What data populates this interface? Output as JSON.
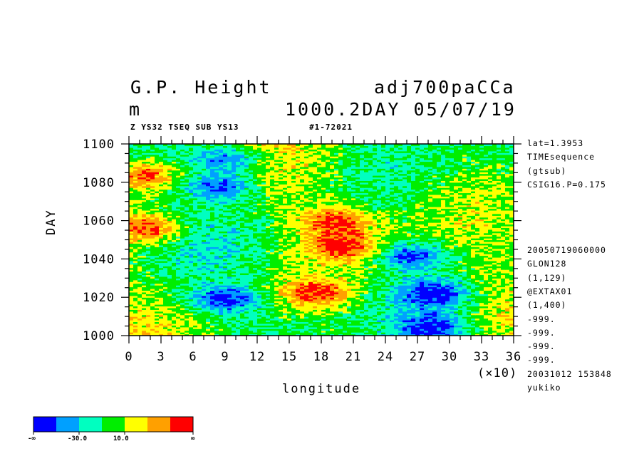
{
  "header": {
    "var_name": "G.P. Height",
    "exp_name": "adj700paCCa",
    "units": "m",
    "level_date": "1000.2DAY 05/07/19",
    "subtitle_left": "Z YS32 TSEQ SUB YS13",
    "subtitle_right": "#1-72021"
  },
  "side_info": {
    "top": [
      "lat=1.3953",
      "TIMEsequence",
      "(gtsub)",
      "CSIG16.P=0.175"
    ],
    "bottom": [
      "20050719060000",
      "GLON128",
      "(1,129)",
      "@EXTAX01",
      "(1,400)",
      "-999.",
      "-999.",
      "-999.",
      "-999.",
      "20031012 153848",
      "yukiko"
    ]
  },
  "colorbar": {
    "colors": [
      "#0000ff",
      "#00a0ff",
      "#00ffc0",
      "#00ee00",
      "#ffff00",
      "#ffa000",
      "#ff0000"
    ],
    "labels": [
      "-∞",
      "-30.0",
      "10.0",
      "∞"
    ]
  },
  "chart_data": {
    "type": "heatmap",
    "title": "G.P. Height",
    "xlabel": "longitude",
    "ylabel": "DAY",
    "x_multiplier": "(×10)",
    "xlim": [
      0,
      36
    ],
    "ylim": [
      1000,
      1100
    ],
    "x_ticks": [
      0,
      3,
      6,
      9,
      12,
      15,
      18,
      21,
      24,
      27,
      30,
      33,
      36
    ],
    "y_ticks": [
      1000,
      1020,
      1040,
      1060,
      1080,
      1100
    ],
    "y_tick_labels": [
      "1000",
      "1020",
      "1040",
      "1060",
      "1080",
      "1100"
    ],
    "color_levels": [
      "< -30.0",
      "-30.0 to 10.0",
      "> 10.0"
    ],
    "dominant_patches": [
      {
        "level": "low",
        "x": 9.5,
        "y": 1092,
        "color": "#0000ff"
      },
      {
        "level": "low",
        "x": 8.7,
        "y": 1078,
        "color": "#0000ff"
      },
      {
        "level": "low",
        "x": 9.0,
        "y": 1019,
        "color": "#0000ff"
      },
      {
        "level": "low",
        "x": 26.5,
        "y": 1042,
        "color": "#0000ff"
      },
      {
        "level": "low",
        "x": 28.7,
        "y": 1022,
        "color": "#0000ff"
      },
      {
        "level": "low",
        "x": 28.5,
        "y": 1004,
        "color": "#0000ff"
      },
      {
        "level": "high",
        "x": 19.5,
        "y": 1060,
        "color": "#ff0000"
      },
      {
        "level": "high",
        "x": 20.0,
        "y": 1047,
        "color": "#ff0000"
      },
      {
        "level": "high",
        "x": 17.5,
        "y": 1022,
        "color": "#ff0000"
      },
      {
        "level": "high",
        "x": 1.5,
        "y": 1084,
        "color": "#ff0000"
      },
      {
        "level": "high",
        "x": 2.0,
        "y": 1056,
        "color": "#ff0000"
      }
    ]
  }
}
